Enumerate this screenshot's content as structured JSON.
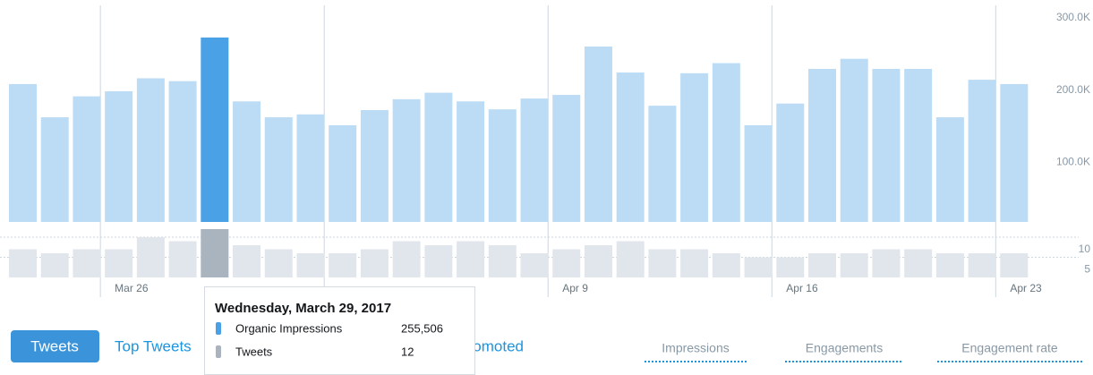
{
  "chart_data": {
    "type": "bar",
    "categories": [
      null,
      null,
      null,
      "Mar 26",
      null,
      null,
      null,
      null,
      null,
      null,
      null,
      null,
      null,
      null,
      null,
      null,
      null,
      "Apr 9",
      null,
      null,
      null,
      null,
      null,
      null,
      "Apr 16",
      null,
      null,
      null,
      null,
      null,
      null,
      "Apr 23"
    ],
    "series": [
      {
        "name": "Organic Impressions",
        "color": "#bcdcf5",
        "highlight_color": "#4aa1e6",
        "values": [
          191000,
          145000,
          174000,
          181000,
          199000,
          195000,
          255506,
          167000,
          145000,
          149000,
          134000,
          155000,
          170000,
          179000,
          167000,
          156000,
          171000,
          176000,
          243000,
          207000,
          161000,
          206000,
          220000,
          134000,
          164000,
          212000,
          226000,
          212000,
          212000,
          145000,
          197000,
          191000
        ]
      },
      {
        "name": "Tweets",
        "color": "#e1e6ec",
        "highlight_color": "#aab4be",
        "axis": "y2",
        "values": [
          7,
          6,
          7,
          7,
          10,
          9,
          12,
          8,
          7,
          6,
          6,
          7,
          9,
          8,
          9,
          8,
          6,
          7,
          8,
          9,
          7,
          7,
          6,
          5,
          5,
          6,
          6,
          7,
          7,
          6,
          6,
          6
        ]
      }
    ],
    "highlight": 6,
    "ylim": [
      0,
      300000
    ],
    "yticks": [
      {
        "value": 100000,
        "label": "100.0K"
      },
      {
        "value": 200000,
        "label": "200.0K"
      },
      {
        "value": 300000,
        "label": "300.0K"
      }
    ],
    "y2lim": [
      0,
      12
    ],
    "y2ticks": [
      5,
      10
    ]
  },
  "tooltip": {
    "title": "Wednesday, March 29, 2017",
    "rows": [
      {
        "label": "Organic Impressions",
        "value": "255,506"
      },
      {
        "label": "Tweets",
        "value": "12"
      }
    ]
  },
  "tabs": [
    "Tweets",
    "Top Tweets",
    "Promoted"
  ],
  "metrics": [
    "Impressions",
    "Engagements",
    "Engagement rate"
  ]
}
